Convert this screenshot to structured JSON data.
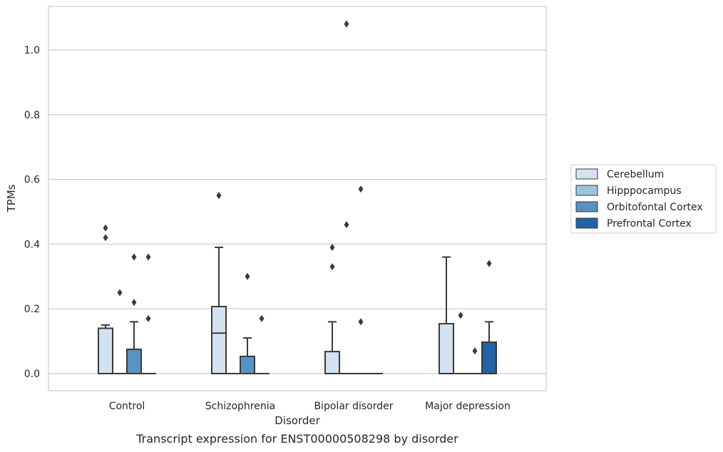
{
  "caption": "Transcript expression for ENST00000508298 by disorder",
  "colors": {
    "Cerebellum": "#d3e2f1",
    "Hipppocampus": "#9bc5dd",
    "Orbitofontal Cortex": "#5693c3",
    "Prefrontal Cortex": "#2262a6",
    "box_edge": "#3a3a3a",
    "grid": "#cccccc",
    "frame": "#cccccc"
  },
  "chart_data": {
    "type": "box",
    "title": "",
    "xlabel": "Disorder",
    "ylabel": "TPMs",
    "ylim": [
      -0.05,
      1.135
    ],
    "yticks": [
      "0.0",
      "0.2",
      "0.4",
      "0.6",
      "0.8",
      "1.0"
    ],
    "categories": [
      "Control",
      "Schizophrenia",
      "Bipolar disorder",
      "Major depression"
    ],
    "legend": {
      "placement": "right, outside plot",
      "entries": [
        "Cerebellum",
        "Hipppocampus",
        "Orbitofontal Cortex",
        "Prefrontal Cortex"
      ]
    },
    "grid": "horizontal",
    "series": [
      {
        "name": "Cerebellum",
        "boxes": [
          {
            "q1": 0.0,
            "median": 0.14,
            "q3": 0.14,
            "whislo": 0.0,
            "whishi": 0.15,
            "fliers": [
              0.42,
              0.45
            ]
          },
          {
            "q1": 0.0,
            "median": 0.125,
            "q3": 0.207,
            "whislo": 0.0,
            "whishi": 0.39,
            "fliers": [
              0.55
            ]
          },
          {
            "q1": 0.0,
            "median": 0.0,
            "q3": 0.068,
            "whislo": 0.0,
            "whishi": 0.16,
            "fliers": [
              0.33,
              0.39
            ]
          },
          {
            "q1": 0.0,
            "median": 0.0,
            "q3": 0.154,
            "whislo": 0.0,
            "whishi": 0.36,
            "fliers": []
          }
        ]
      },
      {
        "name": "Hipppocampus",
        "boxes": [
          {
            "q1": 0.0,
            "median": 0.0,
            "q3": 0.0,
            "whislo": 0.0,
            "whishi": 0.0,
            "fliers": [
              0.25
            ]
          },
          {
            "q1": 0.0,
            "median": 0.0,
            "q3": 0.0,
            "whislo": 0.0,
            "whishi": 0.0,
            "fliers": []
          },
          {
            "q1": 0.0,
            "median": 0.0,
            "q3": 0.0,
            "whislo": 0.0,
            "whishi": 0.0,
            "fliers": [
              0.46,
              1.08
            ]
          },
          {
            "q1": 0.0,
            "median": 0.0,
            "q3": 0.0,
            "whislo": 0.0,
            "whishi": 0.0,
            "fliers": [
              0.18
            ]
          }
        ]
      },
      {
        "name": "Orbitofontal Cortex",
        "boxes": [
          {
            "q1": 0.0,
            "median": 0.0,
            "q3": 0.075,
            "whislo": 0.0,
            "whishi": 0.16,
            "fliers": [
              0.22,
              0.36
            ]
          },
          {
            "q1": 0.0,
            "median": 0.0,
            "q3": 0.053,
            "whislo": 0.0,
            "whishi": 0.11,
            "fliers": [
              0.3
            ]
          },
          {
            "q1": 0.0,
            "median": 0.0,
            "q3": 0.0,
            "whislo": 0.0,
            "whishi": 0.0,
            "fliers": [
              0.16,
              0.57
            ]
          },
          {
            "q1": 0.0,
            "median": 0.0,
            "q3": 0.0,
            "whislo": 0.0,
            "whishi": 0.0,
            "fliers": [
              0.07
            ]
          }
        ]
      },
      {
        "name": "Prefrontal Cortex",
        "boxes": [
          {
            "q1": 0.0,
            "median": 0.0,
            "q3": 0.0,
            "whislo": 0.0,
            "whishi": 0.0,
            "fliers": [
              0.17,
              0.36
            ]
          },
          {
            "q1": 0.0,
            "median": 0.0,
            "q3": 0.0,
            "whislo": 0.0,
            "whishi": 0.0,
            "fliers": [
              0.17
            ]
          },
          {
            "q1": 0.0,
            "median": 0.0,
            "q3": 0.0,
            "whislo": 0.0,
            "whishi": 0.0,
            "fliers": []
          },
          {
            "q1": 0.0,
            "median": 0.0,
            "q3": 0.097,
            "whislo": 0.0,
            "whishi": 0.16,
            "fliers": [
              0.34
            ]
          }
        ]
      }
    ]
  }
}
